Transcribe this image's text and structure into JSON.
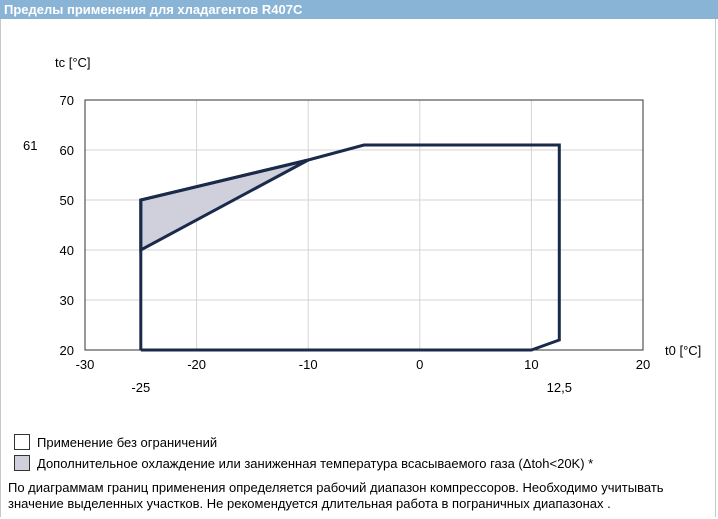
{
  "header": {
    "title": "Пределы применения для хладагентов R407C"
  },
  "chart_data": {
    "type": "line",
    "title": "",
    "xlabel": "t0 [°C]",
    "ylabel": "tc [°C]",
    "xlim": [
      -30,
      20
    ],
    "ylim": [
      20,
      70
    ],
    "x_ticks": [
      -30,
      -20,
      -10,
      0,
      10,
      20
    ],
    "y_ticks": [
      20,
      30,
      40,
      50,
      60,
      70
    ],
    "extra_x_labels": [
      {
        "value": -25,
        "label": "-25"
      },
      {
        "value": 12.5,
        "label": "12,5"
      }
    ],
    "extra_y_labels": [
      {
        "value": 61,
        "label": "61"
      }
    ],
    "grid": true,
    "envelope": {
      "x": [
        -25,
        -25,
        -10,
        -5,
        12.5,
        12.5,
        10,
        -25
      ],
      "y": [
        20,
        50,
        58,
        61,
        61,
        22,
        20,
        20
      ]
    },
    "shaded_region": {
      "x": [
        -25,
        -10,
        -25
      ],
      "y": [
        50,
        58,
        40
      ]
    },
    "colors": {
      "envelope": "#1a2a4a",
      "shaded": "#cfd0dc",
      "grid": "#d4d4d4"
    }
  },
  "legend": [
    {
      "label": "Применение без ограничений",
      "color": "#ffffff"
    },
    {
      "label": "Дополнительное охлаждение или заниженная температура всасываемого газа (Δtoh<20K) *",
      "color": "#cfd0dc"
    }
  ],
  "note": {
    "line1": "По диаграммам границ применения определяется рабочий диапазон компрессоров. Необходимо учитывать",
    "line2": "значение выделенных участков. Не рекомендуется длительная работа в пограничных диапазонах ."
  }
}
